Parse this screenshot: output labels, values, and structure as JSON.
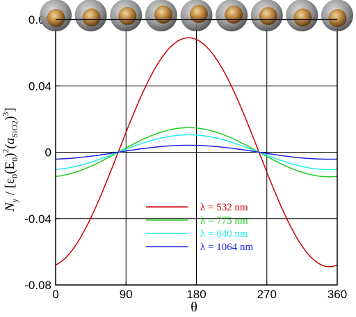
{
  "chart_data": {
    "type": "line",
    "xlabel": "θ",
    "ylabel": {
      "N": "N",
      "y_sub": "y",
      "open": " / [ε",
      "zero_sub1": "0",
      "paren_E": "(E",
      "zero_sub2": "0",
      "close_sq": ")",
      "two_sup": "2",
      "paren_a": "(a",
      "sio2_sub": "SiO2",
      "close_cube": ")",
      "three_sup": "3",
      "end": "]"
    },
    "xlim": [
      0,
      360
    ],
    "ylim": [
      -0.08,
      0.08
    ],
    "x_ticks": [
      0,
      90,
      180,
      270,
      360
    ],
    "x_tick_labels": [
      "0",
      "90",
      "180",
      "270",
      "360"
    ],
    "y_ticks": [
      -0.08,
      -0.04,
      0,
      0.04,
      0.08
    ],
    "y_tick_labels": [
      "-0.08",
      "-0.04",
      "0",
      "0.04",
      "0.08"
    ],
    "grid": true,
    "legend_position": "bottom-center",
    "series": [
      {
        "name": "λ =  532 nm",
        "color": "#cc0000",
        "amplitude": 0.069,
        "peak_x": 170
      },
      {
        "name": "λ = 775 nm",
        "color": "#22cc22",
        "amplitude": 0.0148,
        "peak_x": 170
      },
      {
        "name": "λ = 840 nm",
        "color": "#22eeee",
        "amplitude": 0.0105,
        "peak_x": 170
      },
      {
        "name": "λ = 1064 nm",
        "color": "#2222dd",
        "amplitude": 0.0042,
        "peak_x": 170
      }
    ],
    "sphere_positions": [
      0,
      45,
      90,
      135,
      180,
      225,
      270,
      315,
      360
    ]
  }
}
